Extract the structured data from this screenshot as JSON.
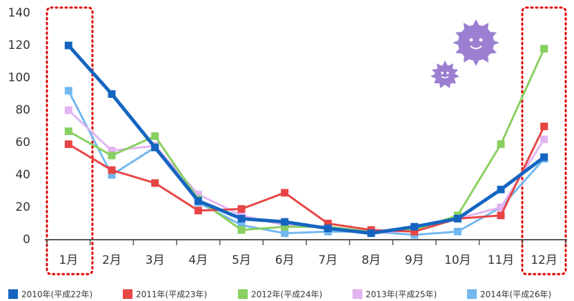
{
  "chart_data": {
    "type": "line",
    "categories": [
      "1月",
      "2月",
      "3月",
      "4月",
      "5月",
      "6月",
      "7月",
      "8月",
      "9月",
      "10月",
      "11月",
      "12月"
    ],
    "series": [
      {
        "name": "2010年(平成22年)",
        "color": "#1565c0",
        "values": [
          120,
          90,
          57,
          24,
          13,
          11,
          7,
          4,
          8,
          13,
          31,
          51
        ]
      },
      {
        "name": "2011年(平成23年)",
        "color": "#e84545",
        "values": [
          59,
          43,
          35,
          18,
          19,
          29,
          10,
          6,
          5,
          13,
          15,
          70
        ]
      },
      {
        "name": "2012年(平成24年)",
        "color": "#88d060",
        "values": [
          67,
          52,
          64,
          25,
          6,
          8,
          8,
          5,
          6,
          15,
          59,
          118
        ]
      },
      {
        "name": "2013年(平成25年)",
        "color": "#e2b4f2",
        "values": [
          80,
          55,
          58,
          28,
          15,
          9,
          8,
          4,
          6,
          13,
          20,
          62
        ]
      },
      {
        "name": "2014年(平成26年)",
        "color": "#72b8f0",
        "values": [
          92,
          40,
          57,
          23,
          9,
          4,
          5,
          5,
          3,
          5,
          20,
          50
        ]
      }
    ],
    "ylim": [
      0,
      140
    ],
    "yticks": [
      0,
      20,
      40,
      60,
      80,
      100,
      120,
      140
    ],
    "grid": false
  }
}
